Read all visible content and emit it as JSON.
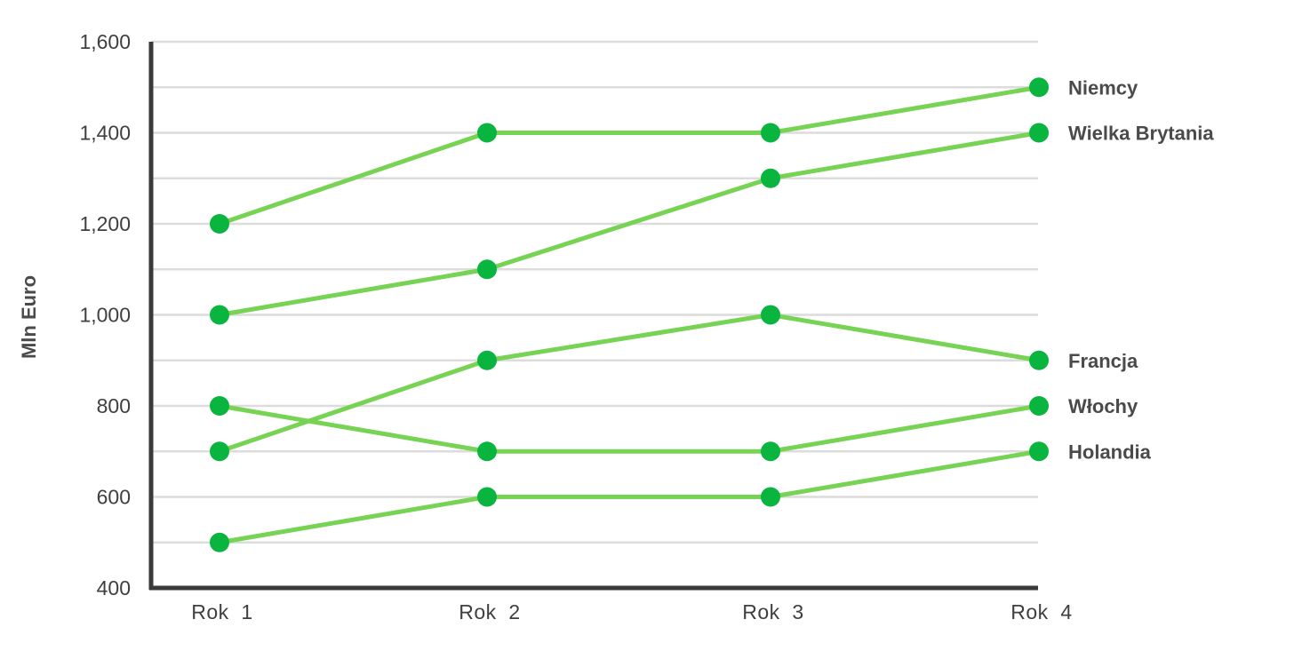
{
  "chart_data": {
    "type": "line",
    "title": "",
    "xlabel": "",
    "ylabel": "Mln Euro",
    "ylim": [
      400,
      1600
    ],
    "yticks": [
      400,
      600,
      800,
      1000,
      1200,
      1400,
      1600
    ],
    "ytick_labels": [
      "400",
      "600",
      "800",
      "1,000",
      "1,200",
      "1,400",
      "1,600"
    ],
    "categories": [
      "Rok  1",
      "Rok  2",
      "Rok  3",
      "Rok  4"
    ],
    "grid": true,
    "legend": "end-of-line labels on right",
    "colors": {
      "line": "#77d353",
      "marker": "#09b43f",
      "axis": "#3a3a3a",
      "grid": "#dcdcdc",
      "text": "#3f3f3f"
    },
    "series": [
      {
        "name": "Niemcy",
        "values": [
          1200,
          1400,
          1400,
          1500
        ]
      },
      {
        "name": "Wielka Brytania",
        "values": [
          1000,
          1100,
          1300,
          1400
        ]
      },
      {
        "name": "Francja",
        "values": [
          700,
          900,
          1000,
          900
        ]
      },
      {
        "name": "Włochy",
        "values": [
          800,
          700,
          700,
          800
        ]
      },
      {
        "name": "Holandia",
        "values": [
          500,
          600,
          600,
          700
        ]
      }
    ]
  }
}
